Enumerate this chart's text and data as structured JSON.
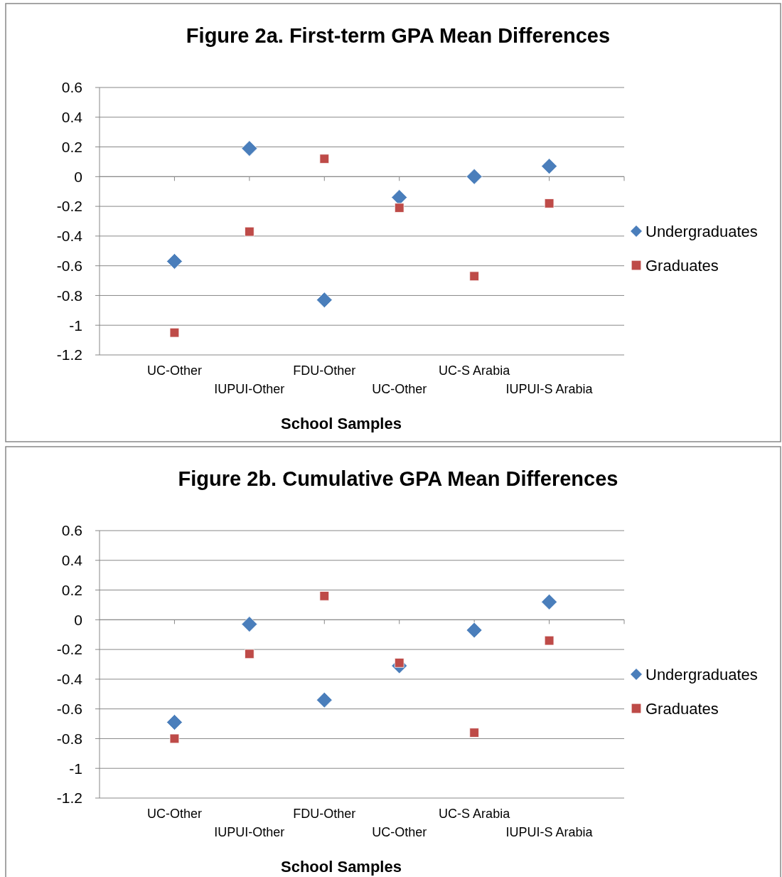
{
  "chart_data": [
    {
      "type": "scatter",
      "title": "Figure 2a. First-term GPA Mean Differences",
      "xlabel": "School Samples",
      "categories": [
        "UC-Other",
        "IUPUI-Other",
        "FDU-Other",
        "UC-Other",
        "UC-S Arabia",
        "IUPUI-S Arabia"
      ],
      "ylim": [
        -1.2,
        0.6
      ],
      "yticks": [
        -1.2,
        -1,
        -0.8,
        -0.6,
        -0.4,
        -0.2,
        0,
        0.2,
        0.4,
        0.6
      ],
      "grid": "y",
      "legend": "right",
      "series": [
        {
          "name": "Undergraduates",
          "color": "#4a7ebb",
          "marker": "diamond",
          "values": [
            -0.57,
            0.19,
            -0.83,
            -0.14,
            0,
            0.07
          ]
        },
        {
          "name": "Graduates",
          "color": "#be4b48",
          "marker": "square",
          "values": [
            -1.05,
            -0.37,
            0.12,
            -0.21,
            -0.67,
            -0.18
          ]
        }
      ]
    },
    {
      "type": "scatter",
      "title": "Figure 2b. Cumulative GPA Mean Differences",
      "xlabel": "School Samples",
      "categories": [
        "UC-Other",
        "IUPUI-Other",
        "FDU-Other",
        "UC-Other",
        "UC-S Arabia",
        "IUPUI-S Arabia"
      ],
      "ylim": [
        -1.2,
        0.6
      ],
      "yticks": [
        -1.2,
        -1,
        -0.8,
        -0.6,
        -0.4,
        -0.2,
        0,
        0.2,
        0.4,
        0.6
      ],
      "grid": "y",
      "legend": "right",
      "series": [
        {
          "name": "Undergraduates",
          "color": "#4a7ebb",
          "marker": "diamond",
          "values": [
            -0.69,
            -0.03,
            -0.54,
            -0.31,
            -0.07,
            0.12
          ]
        },
        {
          "name": "Graduates",
          "color": "#be4b48",
          "marker": "square",
          "values": [
            -0.8,
            -0.23,
            0.16,
            -0.29,
            -0.76,
            -0.14
          ]
        }
      ]
    }
  ]
}
